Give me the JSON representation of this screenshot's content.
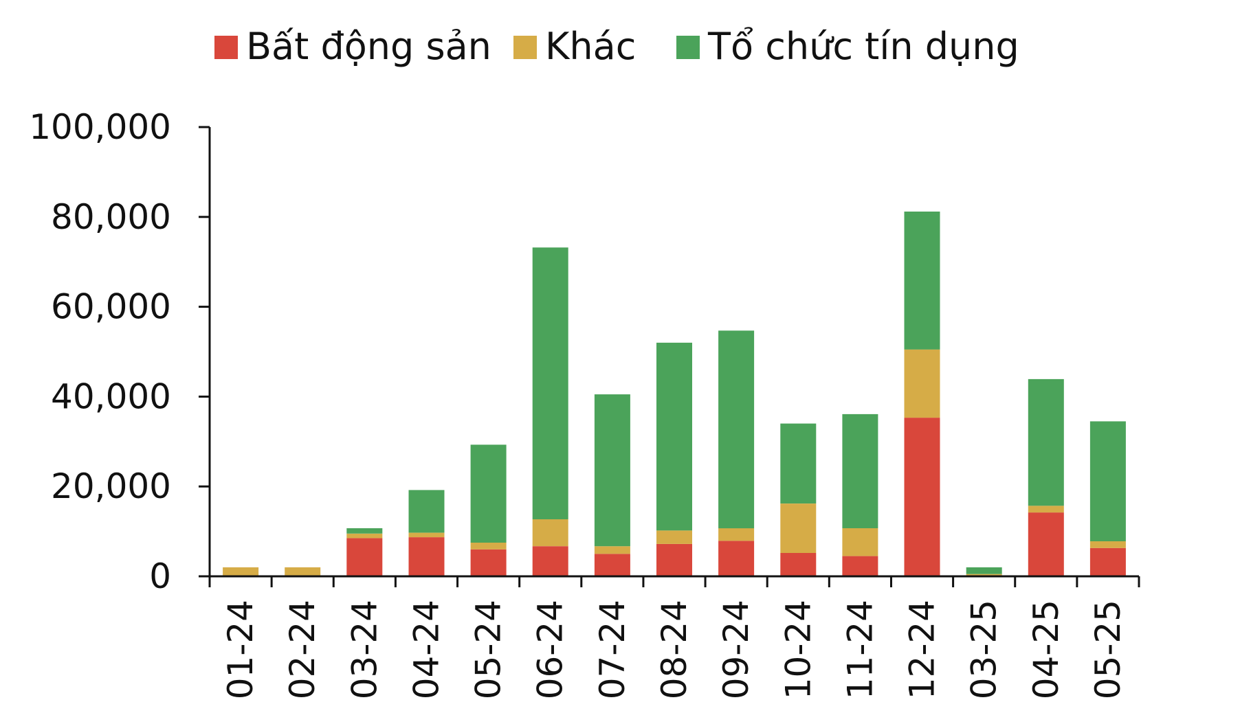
{
  "chart_data": {
    "type": "bar",
    "stacked": true,
    "categories": [
      "01-24",
      "02-24",
      "03-24",
      "04-24",
      "05-24",
      "06-24",
      "07-24",
      "08-24",
      "09-24",
      "10-24",
      "11-24",
      "12-24",
      "03-25",
      "04-25",
      "05-25"
    ],
    "series": [
      {
        "name": "Bất động sản",
        "color": "#d9473b",
        "values": [
          0,
          0,
          8500,
          8700,
          6000,
          6700,
          5000,
          7200,
          7900,
          5200,
          4500,
          35300,
          0,
          14200,
          6300
        ]
      },
      {
        "name": "Khác",
        "color": "#d6ac47",
        "values": [
          2000,
          2000,
          1000,
          1000,
          1500,
          6000,
          1700,
          3000,
          2800,
          11000,
          6200,
          15200,
          500,
          1500,
          1500
        ]
      },
      {
        "name": "Tổ chức tín dụng",
        "color": "#4ba35a",
        "values": [
          0,
          0,
          1200,
          9500,
          21800,
          60500,
          33800,
          41800,
          44000,
          17800,
          25400,
          30700,
          1500,
          28200,
          26700
        ]
      }
    ],
    "yticks": [
      "0",
      "20,000",
      "40,000",
      "60,000",
      "80,000",
      "100,000"
    ],
    "ylim": [
      0,
      100000
    ],
    "legend_position": "top",
    "grid": false
  }
}
